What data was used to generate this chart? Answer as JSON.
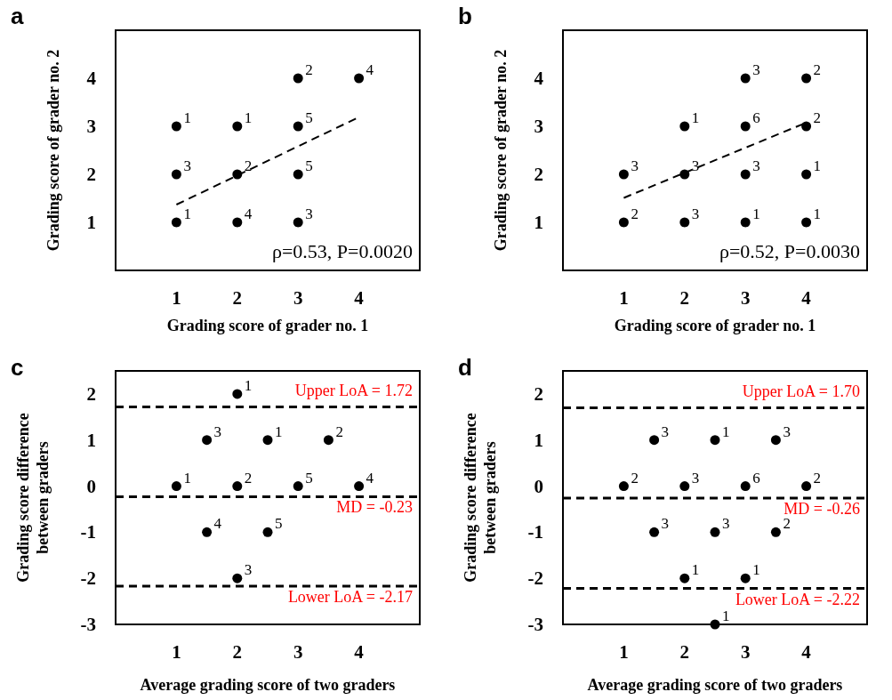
{
  "chart_data": [
    {
      "type": "scatter",
      "title": "a",
      "xlabel": "Grading score of grader no. 1",
      "ylabel": "Grading score of grader no. 2",
      "xlim": [
        0,
        5
      ],
      "ylim": [
        0,
        5
      ],
      "xticks": [
        1,
        2,
        3,
        4
      ],
      "yticks": [
        1,
        2,
        3,
        4
      ],
      "annotations": [
        "ρ=0.53, P=0.0020",
        {
          "text": "1",
          "x": 1,
          "y": 3
        },
        {
          "text": "1",
          "x": 2,
          "y": 3
        },
        {
          "text": "2",
          "x": 3,
          "y": 4
        },
        {
          "text": "4",
          "x": 4,
          "y": 4
        },
        {
          "text": "5",
          "x": 3,
          "y": 3
        },
        {
          "text": "3",
          "x": 1,
          "y": 2
        },
        {
          "text": "2",
          "x": 2,
          "y": 2
        },
        {
          "text": "5",
          "x": 3,
          "y": 2
        },
        {
          "text": "1",
          "x": 1,
          "y": 1
        },
        {
          "text": "4",
          "x": 2,
          "y": 1
        },
        {
          "text": "3",
          "x": 3,
          "y": 1
        }
      ],
      "series": [
        {
          "color": "#000000",
          "marker": "circle",
          "x": [
            1,
            2,
            3,
            4,
            3,
            1,
            2,
            3,
            1,
            2,
            3
          ],
          "values": [
            3,
            3,
            4,
            4,
            3,
            2,
            2,
            2,
            1,
            1,
            1
          ]
        },
        {
          "type": "line",
          "color": "#000000",
          "line_style": "dashed",
          "x": [
            1,
            3.95
          ],
          "values": [
            1.37,
            3.16
          ]
        }
      ]
    },
    {
      "type": "scatter",
      "title": "b",
      "xlabel": "Grading score of grader no. 1",
      "ylabel": "Grading score of grader no. 2",
      "xlim": [
        0,
        5
      ],
      "ylim": [
        0,
        5
      ],
      "xticks": [
        1,
        2,
        3,
        4
      ],
      "yticks": [
        1,
        2,
        3,
        4
      ],
      "annotations": [
        "ρ=0.52, P=0.0030",
        {
          "text": "3",
          "x": 3,
          "y": 4
        },
        {
          "text": "2",
          "x": 4,
          "y": 4
        },
        {
          "text": "1",
          "x": 2,
          "y": 3
        },
        {
          "text": "6",
          "x": 3,
          "y": 3
        },
        {
          "text": "2",
          "x": 4,
          "y": 3
        },
        {
          "text": "3",
          "x": 1,
          "y": 2
        },
        {
          "text": "3",
          "x": 2,
          "y": 2
        },
        {
          "text": "3",
          "x": 3,
          "y": 2
        },
        {
          "text": "1",
          "x": 4,
          "y": 2
        },
        {
          "text": "2",
          "x": 1,
          "y": 1
        },
        {
          "text": "3",
          "x": 2,
          "y": 1
        },
        {
          "text": "1",
          "x": 3,
          "y": 1
        },
        {
          "text": "1",
          "x": 4,
          "y": 1
        }
      ],
      "series": [
        {
          "color": "#000000",
          "marker": "circle",
          "x": [
            3,
            4,
            2,
            3,
            4,
            1,
            2,
            3,
            4,
            1,
            2,
            3,
            4
          ],
          "values": [
            4,
            4,
            3,
            3,
            3,
            2,
            2,
            2,
            2,
            1,
            1,
            1,
            1
          ]
        },
        {
          "type": "line",
          "color": "#000000",
          "line_style": "dashed",
          "x": [
            1,
            3.95
          ],
          "values": [
            1.51,
            3.05
          ]
        }
      ]
    },
    {
      "type": "scatter",
      "title": "c",
      "xlabel": "Average grading score of two graders",
      "ylabel": "Grading score difference between graders",
      "xlim": [
        0,
        5
      ],
      "ylim": [
        -3,
        2.5
      ],
      "xticks": [
        1,
        2,
        3,
        4
      ],
      "yticks": [
        -3,
        -2,
        -1,
        0,
        1,
        2
      ],
      "annotations": [
        {
          "text": "1",
          "x": 2,
          "y": 2
        },
        {
          "text": "3",
          "x": 1.5,
          "y": 1
        },
        {
          "text": "1",
          "x": 2.5,
          "y": 1
        },
        {
          "text": "2",
          "x": 3.5,
          "y": 1
        },
        {
          "text": "1",
          "x": 1,
          "y": 0
        },
        {
          "text": "2",
          "x": 2,
          "y": 0
        },
        {
          "text": "5",
          "x": 3,
          "y": 0
        },
        {
          "text": "4",
          "x": 4,
          "y": 0
        },
        {
          "text": "4",
          "x": 1.5,
          "y": -1
        },
        {
          "text": "5",
          "x": 2.5,
          "y": -1
        },
        {
          "text": "3",
          "x": 2,
          "y": -2
        }
      ],
      "series": [
        {
          "color": "#000000",
          "marker": "circle",
          "x": [
            2,
            1.5,
            2.5,
            3.5,
            1,
            2,
            3,
            4,
            1.5,
            2.5,
            2
          ],
          "values": [
            2,
            1,
            1,
            1,
            0,
            0,
            0,
            0,
            -1,
            -1,
            -2
          ]
        }
      ],
      "ref_lines": [
        {
          "axis": "y",
          "value": 1.72,
          "label": "Upper LoA = 1.72",
          "color": "#000000",
          "line_style": "dashed"
        },
        {
          "axis": "y",
          "value": -0.23,
          "label": "MD = -0.23",
          "color": "#000000",
          "line_style": "dashed"
        },
        {
          "axis": "y",
          "value": -2.17,
          "label": "Lower LoA = -2.17",
          "color": "#000000",
          "line_style": "dashed"
        }
      ]
    },
    {
      "type": "scatter",
      "title": "d",
      "xlabel": "Average grading score of two graders",
      "ylabel": "Grading score difference between graders",
      "xlim": [
        0,
        5
      ],
      "ylim": [
        -3,
        2.5
      ],
      "xticks": [
        1,
        2,
        3,
        4
      ],
      "yticks": [
        -3,
        -2,
        -1,
        0,
        1,
        2
      ],
      "annotations": [
        {
          "text": "3",
          "x": 1.5,
          "y": 1
        },
        {
          "text": "1",
          "x": 2.5,
          "y": 1
        },
        {
          "text": "3",
          "x": 3.5,
          "y": 1
        },
        {
          "text": "2",
          "x": 1,
          "y": 0
        },
        {
          "text": "3",
          "x": 2,
          "y": 0
        },
        {
          "text": "6",
          "x": 3,
          "y": 0
        },
        {
          "text": "2",
          "x": 4,
          "y": 0
        },
        {
          "text": "3",
          "x": 1.5,
          "y": -1
        },
        {
          "text": "3",
          "x": 2.5,
          "y": -1
        },
        {
          "text": "2",
          "x": 3.5,
          "y": -1
        },
        {
          "text": "1",
          "x": 2,
          "y": -2
        },
        {
          "text": "1",
          "x": 3,
          "y": -2
        },
        {
          "text": "1",
          "x": 2.5,
          "y": -3
        }
      ],
      "series": [
        {
          "color": "#000000",
          "marker": "circle",
          "x": [
            1.5,
            2.5,
            3.5,
            1,
            2,
            3,
            4,
            1.5,
            2.5,
            3.5,
            2,
            3,
            2.5
          ],
          "values": [
            1,
            1,
            1,
            0,
            0,
            0,
            0,
            -1,
            -1,
            -1,
            -2,
            -2,
            -3
          ]
        }
      ],
      "ref_lines": [
        {
          "axis": "y",
          "value": 1.7,
          "label": "Upper LoA = 1.70",
          "color": "#000000",
          "line_style": "dashed"
        },
        {
          "axis": "y",
          "value": -0.26,
          "label": "MD = -0.26",
          "color": "#000000",
          "line_style": "dashed"
        },
        {
          "axis": "y",
          "value": -2.22,
          "label": "Lower LoA = -2.22",
          "color": "#000000",
          "line_style": "dashed"
        }
      ]
    }
  ]
}
